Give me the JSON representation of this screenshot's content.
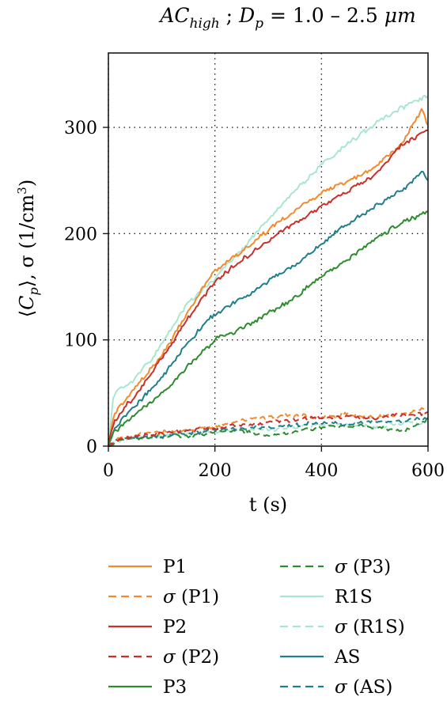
{
  "chart_data": {
    "type": "line",
    "title": {
      "base1": "AC",
      "sub1": "high",
      "sep": " ; ",
      "base2": "D",
      "sub2": "p",
      "rest": " = 1.0 – 2.5 ",
      "unit": "μm"
    },
    "xlabel": "t (s)",
    "ylabel": {
      "lead": "⟨",
      "var": "C",
      "sub": "p",
      "mid": "⟩, σ (1/cm",
      "sup": "3",
      "tail": ")"
    },
    "xlim": [
      0,
      600
    ],
    "ylim": [
      0,
      370
    ],
    "xticks": [
      {
        "v": 0,
        "label": "0"
      },
      {
        "v": 200,
        "label": "200"
      },
      {
        "v": 400,
        "label": "400"
      },
      {
        "v": 600,
        "label": "600"
      }
    ],
    "yticks": [
      {
        "v": 0,
        "label": "0"
      },
      {
        "v": 100,
        "label": "100"
      },
      {
        "v": 200,
        "label": "200"
      },
      {
        "v": 300,
        "label": "300"
      }
    ],
    "grid": true,
    "legend_position": "bottom",
    "series": [
      {
        "name": "P1",
        "color": "#f28a2e",
        "dash": false,
        "x": [
          0,
          10,
          25,
          50,
          100,
          150,
          200,
          250,
          300,
          350,
          400,
          450,
          500,
          550,
          590,
          600
        ],
        "y": [
          0,
          28,
          40,
          55,
          85,
          128,
          165,
          183,
          203,
          222,
          238,
          250,
          262,
          284,
          318,
          300
        ]
      },
      {
        "name": "σ (P1)",
        "color": "#f28a2e",
        "dash": true,
        "x": [
          0,
          20,
          50,
          100,
          150,
          200,
          250,
          300,
          350,
          400,
          450,
          500,
          550,
          600
        ],
        "y": [
          0,
          8,
          10,
          13,
          15,
          18,
          24,
          27,
          29,
          27,
          30,
          27,
          31,
          35
        ]
      },
      {
        "name": "P2",
        "color": "#c8302a",
        "dash": false,
        "x": [
          0,
          10,
          25,
          50,
          100,
          150,
          200,
          250,
          300,
          350,
          400,
          450,
          500,
          550,
          600
        ],
        "y": [
          0,
          22,
          34,
          47,
          82,
          120,
          155,
          175,
          193,
          210,
          225,
          240,
          255,
          283,
          298
        ]
      },
      {
        "name": "σ (P2)",
        "color": "#c8302a",
        "dash": true,
        "x": [
          0,
          20,
          50,
          100,
          150,
          200,
          250,
          300,
          350,
          400,
          450,
          500,
          550,
          600
        ],
        "y": [
          0,
          6,
          9,
          12,
          14,
          17,
          20,
          22,
          25,
          28,
          27,
          26,
          30,
          31
        ]
      },
      {
        "name": "P3",
        "color": "#2e8b2e",
        "dash": false,
        "x": [
          0,
          10,
          25,
          50,
          100,
          150,
          200,
          250,
          300,
          350,
          400,
          450,
          500,
          550,
          600
        ],
        "y": [
          0,
          12,
          20,
          30,
          50,
          75,
          100,
          110,
          125,
          140,
          160,
          175,
          195,
          210,
          220
        ]
      },
      {
        "name": "σ (P3)",
        "color": "#2e8b2e",
        "dash": true,
        "x": [
          0,
          20,
          50,
          100,
          150,
          200,
          250,
          300,
          350,
          400,
          450,
          500,
          550,
          600
        ],
        "y": [
          0,
          5,
          7,
          9,
          10,
          13,
          15,
          9,
          14,
          17,
          19,
          18,
          14,
          25
        ]
      },
      {
        "name": "R1S",
        "color": "#a8e6cf",
        "dash": false,
        "x": [
          0,
          10,
          25,
          50,
          100,
          150,
          200,
          250,
          300,
          350,
          400,
          450,
          500,
          550,
          600
        ],
        "y": [
          0,
          48,
          55,
          63,
          95,
          135,
          158,
          185,
          213,
          240,
          265,
          285,
          303,
          318,
          330
        ]
      },
      {
        "name": "σ (R1S)",
        "color": "#a8e6cf",
        "dash": true,
        "x": [
          0,
          20,
          50,
          100,
          150,
          200,
          250,
          300,
          350,
          400,
          450,
          500,
          550,
          600
        ],
        "y": [
          0,
          5,
          7,
          9,
          11,
          14,
          16,
          15,
          18,
          19,
          20,
          18,
          21,
          23
        ]
      },
      {
        "name": "AS",
        "color": "#1f7f8a",
        "dash": false,
        "x": [
          0,
          10,
          25,
          50,
          100,
          150,
          200,
          250,
          300,
          350,
          400,
          450,
          500,
          550,
          590,
          600
        ],
        "y": [
          0,
          15,
          25,
          38,
          65,
          98,
          125,
          138,
          155,
          170,
          190,
          210,
          225,
          240,
          258,
          248
        ]
      },
      {
        "name": "σ (AS)",
        "color": "#1f7f8a",
        "dash": true,
        "x": [
          0,
          20,
          50,
          100,
          150,
          200,
          250,
          300,
          350,
          400,
          450,
          500,
          550,
          600
        ],
        "y": [
          0,
          6,
          8,
          10,
          12,
          15,
          17,
          18,
          20,
          22,
          21,
          23,
          24,
          26
        ]
      }
    ]
  }
}
